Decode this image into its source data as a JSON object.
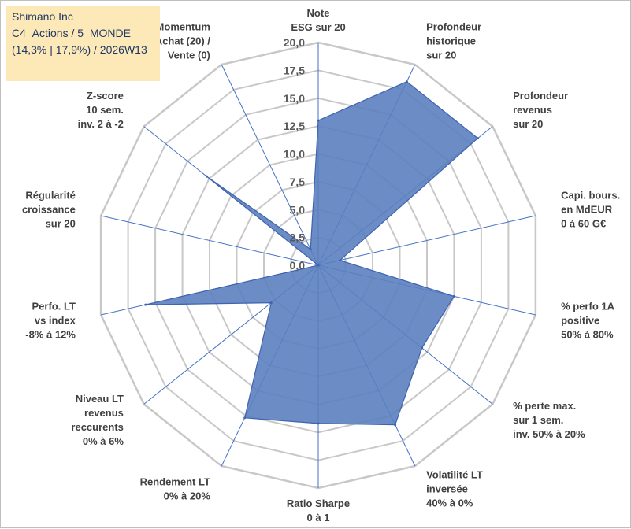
{
  "info": {
    "line1": "Shimano Inc",
    "line2": "C4_Actions / 5_MONDE",
    "line3": "(14,3% | 17,9%) / 2026W13"
  },
  "colors": {
    "fill": "#5b7fbf",
    "stroke": "#3f63b0",
    "grid": "#c8c8c8",
    "spoke": "#4472c4",
    "infobox": "#fde9b8"
  },
  "chart_data": {
    "type": "radar",
    "title": "",
    "rmin": 0,
    "rmax": 20,
    "ticks": [
      "0,0",
      "2,5",
      "5,0",
      "7,5",
      "10,0",
      "12,5",
      "15,0",
      "17,5",
      "20,0"
    ],
    "categories": [
      {
        "lines": [
          "Note",
          "ESG sur 20"
        ]
      },
      {
        "lines": [
          "Profondeur",
          "historique",
          "sur 20"
        ]
      },
      {
        "lines": [
          "Profondeur",
          "revenus",
          "sur 20"
        ]
      },
      {
        "lines": [
          "Capi. bours.",
          "en MdEUR",
          "0 à 60 G€"
        ]
      },
      {
        "lines": [
          "% perfo 1A",
          "positive",
          "50% à 80%"
        ]
      },
      {
        "lines": [
          "% perte max.",
          "sur 1 sem.",
          "inv. 50% à 20%"
        ]
      },
      {
        "lines": [
          "Volatilité LT",
          "inversée",
          "40% à 0%"
        ]
      },
      {
        "lines": [
          "Ratio Sharpe",
          "0 à 1"
        ]
      },
      {
        "lines": [
          "Rendement LT",
          "0% à 20%"
        ]
      },
      {
        "lines": [
          "Niveau LT",
          "revenus",
          "reccurents",
          "0% à 6%"
        ]
      },
      {
        "lines": [
          "Perfo. LT",
          "vs index",
          "-8% à 12%"
        ]
      },
      {
        "lines": [
          "Régularité",
          "croissance",
          "sur 20"
        ]
      },
      {
        "lines": [
          "Z-score",
          "10 sem.",
          "inv. 2 à -2"
        ]
      },
      {
        "lines": [
          "Momentum",
          "Achat (20) /",
          "Vente (0)"
        ]
      }
    ],
    "series": [
      {
        "name": "Shimano Inc",
        "values": [
          13.0,
          18.3,
          18.3,
          2.0,
          12.5,
          11.9,
          15.9,
          14.2,
          15.2,
          5.4,
          15.9,
          0.0,
          12.8,
          1.6
        ]
      }
    ]
  }
}
